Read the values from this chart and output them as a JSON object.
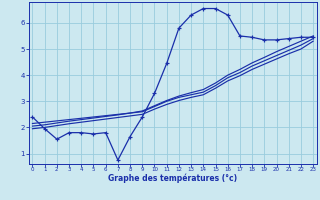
{
  "bg_color": "#cce8f0",
  "grid_color": "#99ccdd",
  "line_color": "#1a2faa",
  "xlabel": "Graphe des températures (°c)",
  "xlabel_color": "#1a2faa",
  "xticks": [
    0,
    1,
    2,
    3,
    4,
    5,
    6,
    7,
    8,
    9,
    10,
    11,
    12,
    13,
    14,
    15,
    16,
    17,
    18,
    19,
    20,
    21,
    22,
    23
  ],
  "yticks": [
    1,
    2,
    3,
    4,
    5,
    6
  ],
  "ylim": [
    0.6,
    6.8
  ],
  "xlim": [
    -0.3,
    23.3
  ],
  "curve1_x": [
    0,
    1,
    2,
    3,
    4,
    5,
    6,
    7,
    8,
    9,
    10,
    11,
    12,
    13,
    14,
    15,
    16,
    17,
    18,
    19,
    20,
    21,
    22,
    23
  ],
  "curve1_y": [
    2.4,
    1.95,
    1.55,
    1.8,
    1.8,
    1.75,
    1.8,
    0.75,
    1.65,
    2.4,
    3.3,
    4.45,
    5.8,
    6.3,
    6.55,
    6.55,
    6.3,
    5.5,
    5.45,
    5.35,
    5.35,
    5.4,
    5.45,
    5.45
  ],
  "curve2_x": [
    0,
    1,
    2,
    3,
    4,
    5,
    6,
    7,
    8,
    9,
    10,
    11,
    12,
    13,
    14,
    15,
    16,
    17,
    18,
    19,
    20,
    21,
    22,
    23
  ],
  "curve2_y": [
    2.15,
    2.2,
    2.25,
    2.3,
    2.35,
    2.4,
    2.45,
    2.5,
    2.55,
    2.6,
    2.8,
    3.0,
    3.15,
    3.25,
    3.35,
    3.6,
    3.9,
    4.1,
    4.35,
    4.55,
    4.75,
    4.95,
    5.15,
    5.4
  ],
  "curve3_x": [
    0,
    1,
    2,
    3,
    4,
    5,
    6,
    7,
    8,
    9,
    10,
    11,
    12,
    13,
    14,
    15,
    16,
    17,
    18,
    19,
    20,
    21,
    22,
    23
  ],
  "curve3_y": [
    2.05,
    2.1,
    2.17,
    2.24,
    2.3,
    2.36,
    2.42,
    2.48,
    2.55,
    2.63,
    2.83,
    3.03,
    3.2,
    3.33,
    3.45,
    3.7,
    4.0,
    4.22,
    4.47,
    4.68,
    4.9,
    5.1,
    5.3,
    5.5
  ],
  "curve4_x": [
    0,
    1,
    2,
    3,
    4,
    5,
    6,
    7,
    8,
    9,
    10,
    11,
    12,
    13,
    14,
    15,
    16,
    17,
    18,
    19,
    20,
    21,
    22,
    23
  ],
  "curve4_y": [
    1.95,
    2.0,
    2.07,
    2.14,
    2.2,
    2.26,
    2.32,
    2.38,
    2.44,
    2.5,
    2.7,
    2.88,
    3.03,
    3.15,
    3.25,
    3.5,
    3.78,
    3.98,
    4.22,
    4.42,
    4.62,
    4.82,
    5.0,
    5.3
  ]
}
